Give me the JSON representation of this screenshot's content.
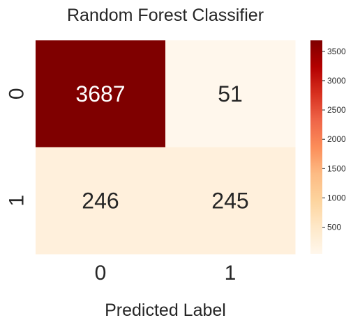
{
  "chart_data": {
    "type": "heatmap",
    "title": "Random Forest Classifier",
    "xlabel": "Predicted Label",
    "ylabel": "",
    "x_categories": [
      "0",
      "1"
    ],
    "y_categories": [
      "0",
      "1"
    ],
    "values": [
      [
        3687,
        51
      ],
      [
        246,
        245
      ]
    ],
    "colorbar": {
      "ticks": [
        "500",
        "1000",
        "1500",
        "2000",
        "2500",
        "3000",
        "3500"
      ],
      "tick_values": [
        500,
        1000,
        1500,
        2000,
        2500,
        3000,
        3500
      ],
      "range": [
        45,
        3687
      ]
    },
    "colormap": "OrRd",
    "colors": {
      "high": "#7f0000",
      "low": "#fff7ec",
      "text_on_dark": "#ffffff",
      "text_on_light": "#262626"
    }
  }
}
